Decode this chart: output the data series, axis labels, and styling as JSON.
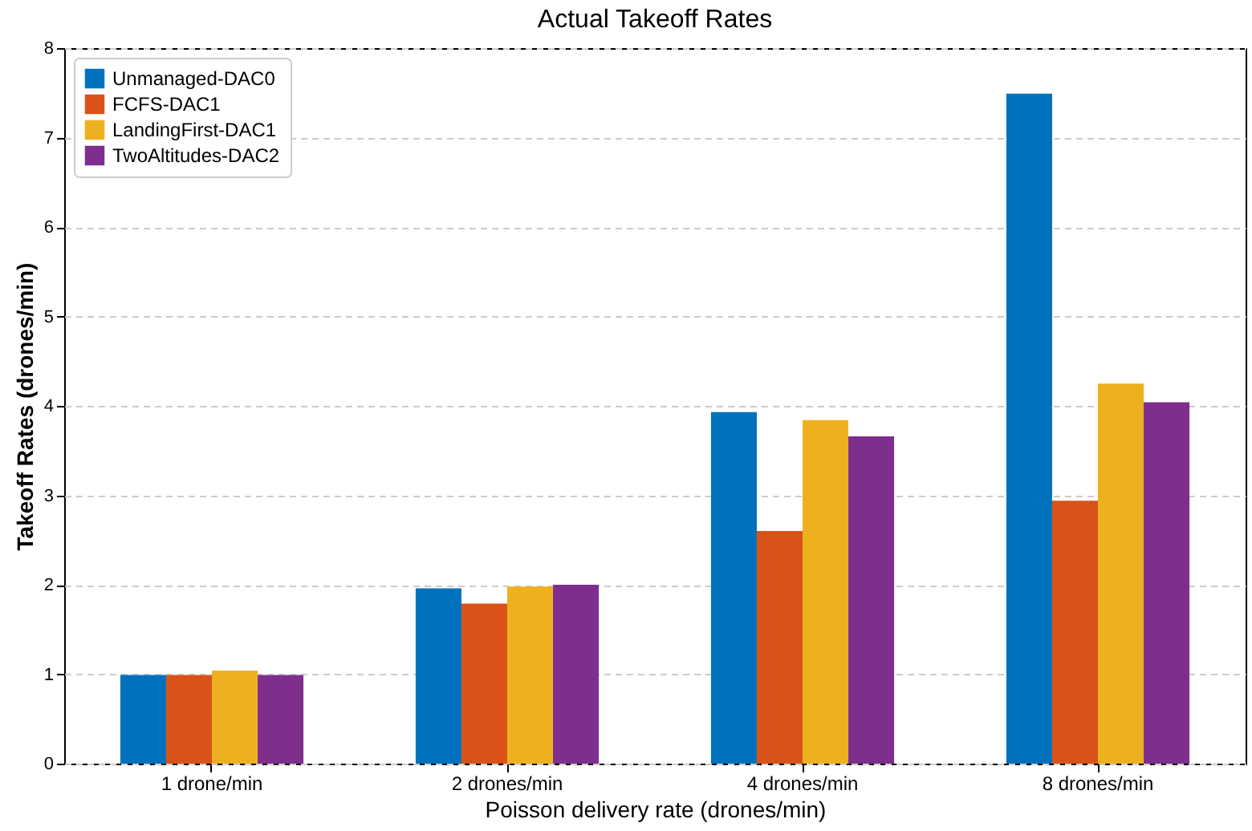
{
  "chart_data": {
    "type": "bar",
    "title": "Actual Takeoff Rates",
    "xlabel": "Poisson delivery rate (drones/min)",
    "ylabel": "Takeoff Rates (drones/min)",
    "categories": [
      "1 drone/min",
      "2 drones/min",
      "4 drones/min",
      "8 drones/min"
    ],
    "series": [
      {
        "name": "Unmanaged-DAC0",
        "color": "#0072bd",
        "values": [
          0.99,
          1.96,
          3.93,
          7.49
        ]
      },
      {
        "name": "FCFS-DAC1",
        "color": "#d95319",
        "values": [
          0.99,
          1.79,
          2.6,
          2.94
        ]
      },
      {
        "name": "LandingFirst-DAC1",
        "color": "#edb120",
        "values": [
          1.04,
          1.98,
          3.84,
          4.25
        ]
      },
      {
        "name": "TwoAltitudes-DAC2",
        "color": "#7e2f8e",
        "values": [
          0.99,
          2.0,
          3.66,
          4.04
        ]
      }
    ],
    "ylim": [
      0,
      8
    ],
    "yticks": [
      0,
      1,
      2,
      3,
      4,
      5,
      6,
      7,
      8
    ],
    "grid": "y",
    "legend": "top left"
  }
}
